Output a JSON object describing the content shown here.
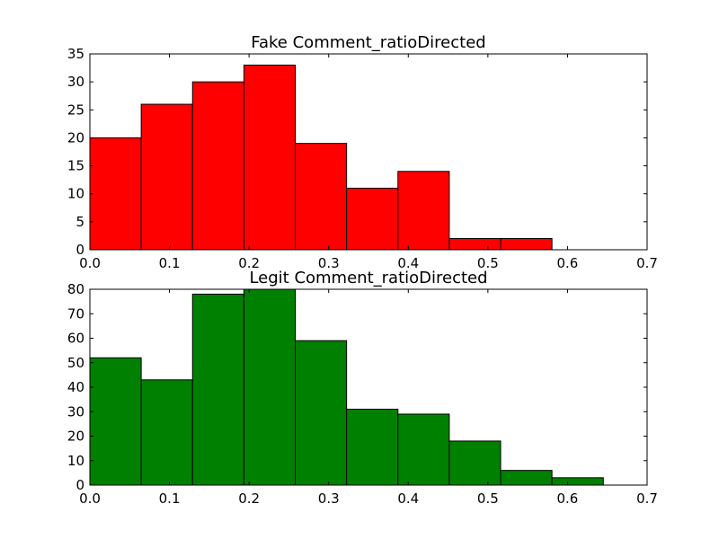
{
  "chart_data": [
    {
      "type": "bar",
      "title": "Fake Comment_ratioDirected",
      "xlabel": "",
      "ylabel": "",
      "xlim": [
        0,
        0.7
      ],
      "ylim": [
        0,
        35
      ],
      "xticks": [
        "0.0",
        "0.1",
        "0.2",
        "0.3",
        "0.4",
        "0.5",
        "0.6",
        "0.7"
      ],
      "yticks": [
        "0",
        "5",
        "10",
        "15",
        "20",
        "25",
        "30",
        "35"
      ],
      "bin_edges": [
        0.0,
        0.0645,
        0.129,
        0.1935,
        0.258,
        0.3225,
        0.387,
        0.4515,
        0.516,
        0.5805,
        0.645
      ],
      "values": [
        20,
        26,
        30,
        33,
        19,
        11,
        14,
        2,
        2,
        0
      ],
      "color": "#ff0000",
      "grid": false
    },
    {
      "type": "bar",
      "title": "Legit Comment_ratioDirected",
      "xlabel": "",
      "ylabel": "",
      "xlim": [
        0,
        0.7
      ],
      "ylim": [
        0,
        80
      ],
      "xticks": [
        "0.0",
        "0.1",
        "0.2",
        "0.3",
        "0.4",
        "0.5",
        "0.6",
        "0.7"
      ],
      "yticks": [
        "0",
        "10",
        "20",
        "30",
        "40",
        "50",
        "60",
        "70",
        "80"
      ],
      "bin_edges": [
        0.0,
        0.0645,
        0.129,
        0.1935,
        0.258,
        0.3225,
        0.387,
        0.4515,
        0.516,
        0.5805,
        0.645
      ],
      "values": [
        52,
        43,
        78,
        80,
        59,
        31,
        29,
        18,
        6,
        3
      ],
      "color": "#008000",
      "grid": false
    }
  ]
}
